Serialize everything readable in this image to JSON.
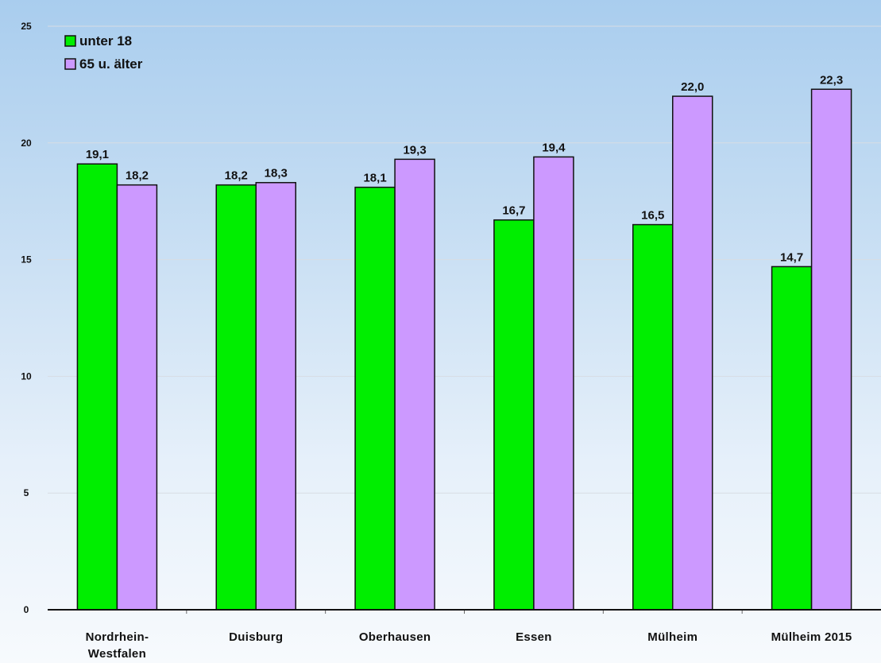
{
  "chart_data": {
    "type": "bar",
    "categories": [
      "Nordrhein-\nWestfalen",
      "Duisburg",
      "Oberhausen",
      "Essen",
      "Mülheim",
      "Mülheim 2015"
    ],
    "series": [
      {
        "name": "unter 18",
        "color": "#00ee00",
        "values": [
          19.1,
          18.2,
          18.1,
          16.7,
          16.5,
          14.7
        ],
        "labels": [
          "19,1",
          "18,2",
          "18,1",
          "16,7",
          "16,5",
          "14,7"
        ]
      },
      {
        "name": "65 u. älter",
        "color": "#cc99ff",
        "values": [
          18.2,
          18.3,
          19.3,
          19.4,
          22.0,
          22.3
        ],
        "labels": [
          "18,2",
          "18,3",
          "19,3",
          "19,4",
          "22,0",
          "22,3"
        ]
      }
    ],
    "yticks": [
      "0",
      "5",
      "10",
      "15",
      "20",
      "25"
    ],
    "ylim": [
      0,
      25
    ],
    "grid": true,
    "legend_position": "top-left",
    "title": "",
    "xlabel": "",
    "ylabel": ""
  }
}
